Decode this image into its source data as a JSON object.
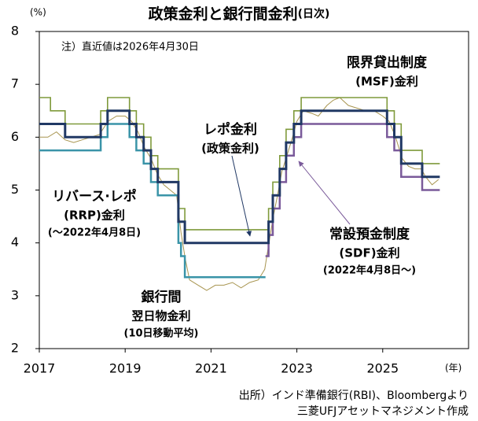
{
  "chart_data": {
    "type": "line",
    "title": "政策金利と銀行間金利",
    "title_note": "(日次)",
    "y_unit": "(%)",
    "x_unit": "(年)",
    "note": "注）直近値は2026年4月30日",
    "source": [
      "出所）インド準備銀行(RBI)、Bloombergより",
      "三菱UFJアセットマネジメント作成"
    ],
    "xlim": [
      2017,
      2027
    ],
    "xticks": [
      2017,
      2019,
      2021,
      2023,
      2025
    ],
    "ylim": [
      2,
      8
    ],
    "yticks": [
      2,
      3,
      4,
      5,
      6,
      7,
      8
    ],
    "annotations": [
      {
        "lines": [
          "レポ金利",
          "(政策金利)"
        ],
        "color": "#203864"
      },
      {
        "lines": [
          "限界貸出制度",
          "(MSF)金利"
        ],
        "color": "#7f9a3b"
      },
      {
        "lines": [
          "リバース·レポ",
          "(RRP)金利",
          "(～2022年4月8日)"
        ],
        "color": "#3a94a8"
      },
      {
        "lines": [
          "常設預金制度",
          "(SDF)金利",
          "(2022年4月8日～)"
        ],
        "color": "#7a5a9a"
      },
      {
        "lines": [
          "銀行間",
          "翌日物金利",
          "(10日移動平均)"
        ],
        "color": "#a89550"
      }
    ],
    "series": [
      {
        "color": "#a89550",
        "width": 1,
        "x": [
          2017,
          2017.2,
          2017.4,
          2017.6,
          2017.8,
          2018,
          2018.2,
          2018.4,
          2018.6,
          2018.8,
          2019,
          2019.15,
          2019.3,
          2019.45,
          2019.6,
          2019.75,
          2019.9,
          2020.05,
          2020.2,
          2020.3,
          2020.4,
          2020.5,
          2020.7,
          2020.9,
          2021.1,
          2021.3,
          2021.5,
          2021.7,
          2021.9,
          2022.1,
          2022.25,
          2022.35,
          2022.45,
          2022.55,
          2022.65,
          2022.75,
          2022.9,
          2023,
          2023.15,
          2023.35,
          2023.5,
          2023.7,
          2023.85,
          2024,
          2024.2,
          2024.4,
          2024.6,
          2024.8,
          2025,
          2025.15,
          2025.3,
          2025.45,
          2025.6,
          2025.75,
          2025.9,
          2026,
          2026.15,
          2026.3
        ],
        "values": [
          6.0,
          6.0,
          6.1,
          5.95,
          5.9,
          5.95,
          6.0,
          6.05,
          6.3,
          6.4,
          6.4,
          6.3,
          6.1,
          5.8,
          5.6,
          5.3,
          5.1,
          5.0,
          4.9,
          4.2,
          3.7,
          3.3,
          3.2,
          3.1,
          3.2,
          3.2,
          3.25,
          3.15,
          3.25,
          3.3,
          3.5,
          4.0,
          4.5,
          4.9,
          5.35,
          5.6,
          6.0,
          6.3,
          6.5,
          6.45,
          6.4,
          6.6,
          6.7,
          6.75,
          6.6,
          6.55,
          6.5,
          6.5,
          6.4,
          6.3,
          6.0,
          5.6,
          5.45,
          5.4,
          5.4,
          5.25,
          5.1,
          5.2
        ]
      },
      {
        "color": "#7f9a3b",
        "width": 1.6,
        "x": [
          2017,
          2017.26,
          2017.26,
          2017.6,
          2017.6,
          2018.43,
          2018.43,
          2018.59,
          2018.59,
          2019.1,
          2019.1,
          2019.26,
          2019.26,
          2019.43,
          2019.43,
          2019.6,
          2019.6,
          2019.76,
          2019.76,
          2020.24,
          2020.24,
          2020.39,
          2020.39,
          2022.34,
          2022.34,
          2022.44,
          2022.44,
          2022.6,
          2022.6,
          2022.75,
          2022.75,
          2022.93,
          2022.93,
          2023.1,
          2023.1,
          2025.1,
          2025.1,
          2025.27,
          2025.27,
          2025.43,
          2025.43,
          2025.92,
          2025.92,
          2026.33
        ],
        "values": [
          6.75,
          6.75,
          6.5,
          6.5,
          6.25,
          6.25,
          6.5,
          6.5,
          6.75,
          6.75,
          6.5,
          6.5,
          6.25,
          6.25,
          6.0,
          6.0,
          5.65,
          5.65,
          5.4,
          5.4,
          4.65,
          4.65,
          4.25,
          4.25,
          4.65,
          4.65,
          5.15,
          5.15,
          5.65,
          5.65,
          6.15,
          6.15,
          6.5,
          6.5,
          6.75,
          6.75,
          6.5,
          6.5,
          6.25,
          6.25,
          5.75,
          5.75,
          5.5,
          5.5
        ]
      },
      {
        "color": "#3a94a8",
        "width": 2.5,
        "x": [
          2017,
          2018.43,
          2018.43,
          2018.59,
          2018.59,
          2019.1,
          2019.1,
          2019.26,
          2019.26,
          2019.43,
          2019.43,
          2019.6,
          2019.6,
          2019.76,
          2019.76,
          2020.24,
          2020.24,
          2020.3,
          2020.3,
          2020.39,
          2020.39,
          2022.27
        ],
        "values": [
          5.75,
          5.75,
          6.0,
          6.0,
          6.25,
          6.25,
          6.0,
          6.0,
          5.75,
          5.75,
          5.5,
          5.5,
          5.15,
          5.15,
          4.9,
          4.9,
          4.0,
          4.0,
          3.75,
          3.75,
          3.35,
          3.35
        ]
      },
      {
        "color": "#7a5a9a",
        "width": 2.5,
        "x": [
          2022.27,
          2022.34,
          2022.34,
          2022.44,
          2022.44,
          2022.6,
          2022.6,
          2022.75,
          2022.75,
          2022.93,
          2022.93,
          2023.1,
          2023.1,
          2025.1,
          2025.1,
          2025.27,
          2025.27,
          2025.43,
          2025.43,
          2025.92,
          2025.92,
          2026.33
        ],
        "values": [
          3.75,
          3.75,
          4.15,
          4.15,
          4.65,
          4.65,
          5.15,
          5.15,
          5.65,
          5.65,
          6.0,
          6.0,
          6.25,
          6.25,
          6.0,
          6.0,
          5.75,
          5.75,
          5.25,
          5.25,
          5.0,
          5.0
        ]
      },
      {
        "color": "#203864",
        "width": 3,
        "x": [
          2017,
          2017.6,
          2017.6,
          2018.43,
          2018.43,
          2018.59,
          2018.59,
          2019.1,
          2019.1,
          2019.26,
          2019.26,
          2019.43,
          2019.43,
          2019.6,
          2019.6,
          2019.76,
          2019.76,
          2020.24,
          2020.24,
          2020.39,
          2020.39,
          2022.34,
          2022.34,
          2022.44,
          2022.44,
          2022.6,
          2022.6,
          2022.75,
          2022.75,
          2022.93,
          2022.93,
          2023.1,
          2023.1,
          2025.1,
          2025.1,
          2025.27,
          2025.27,
          2025.43,
          2025.43,
          2025.92,
          2025.92,
          2026.33
        ],
        "values": [
          6.25,
          6.25,
          6.0,
          6.0,
          6.25,
          6.25,
          6.5,
          6.5,
          6.25,
          6.25,
          6.0,
          6.0,
          5.75,
          5.75,
          5.4,
          5.4,
          5.15,
          5.15,
          4.4,
          4.4,
          4.0,
          4.0,
          4.4,
          4.4,
          4.9,
          4.9,
          5.4,
          5.4,
          5.9,
          5.9,
          6.25,
          6.25,
          6.5,
          6.5,
          6.25,
          6.25,
          6.0,
          6.0,
          5.5,
          5.5,
          5.25,
          5.25
        ]
      }
    ]
  }
}
